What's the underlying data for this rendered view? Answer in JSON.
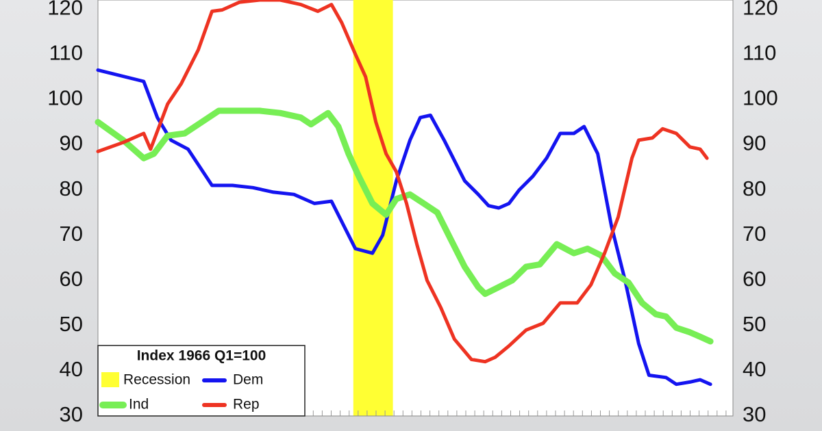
{
  "chart_data": {
    "type": "line",
    "legend_title": "Index 1966 Q1=100",
    "recession": {
      "name": "Recession",
      "color": "#ffff33",
      "xrange": [
        37.4,
        43.2
      ]
    },
    "xlim": [
      0,
      93
    ],
    "ylim": [
      30,
      122
    ],
    "yticks": [
      30,
      40,
      50,
      60,
      70,
      80,
      90,
      100,
      110,
      120
    ],
    "y2lim": [
      30,
      122
    ],
    "y2ticks": [
      30,
      40,
      50,
      60,
      70,
      80,
      90,
      100,
      110,
      120
    ],
    "legend": "bottom-left",
    "series": [
      {
        "name": "Dem",
        "color": "#1414f0",
        "width": 5,
        "x": [
          0,
          6.7,
          8.7,
          10.7,
          13.2,
          16.7,
          19.7,
          22.7,
          25.7,
          28.7,
          31.7,
          34.2,
          35.7,
          37.7,
          40.2,
          41.7,
          43.7,
          45.7,
          47.2,
          48.7,
          50.7,
          53.7,
          55.7,
          57.2,
          58.7,
          60.2,
          61.7,
          63.7,
          65.7,
          67.7,
          69.7,
          71.2,
          73.2,
          75.2,
          77.2,
          79.2,
          80.7,
          83.2,
          84.7,
          86.7,
          88.2,
          89.7
        ],
        "values": [
          106.5,
          104,
          96,
          91,
          89,
          81,
          81,
          80.5,
          79.5,
          79,
          77,
          77.5,
          73,
          67,
          66,
          70,
          82,
          91,
          96,
          96.5,
          91,
          82,
          79,
          76.5,
          76,
          77,
          80,
          83,
          87,
          92.5,
          92.5,
          94,
          88,
          72,
          60,
          46,
          39,
          38.5,
          37,
          37.5,
          38,
          37
        ]
      },
      {
        "name": "Ind",
        "color": "#77ee55",
        "width": 9,
        "x": [
          0,
          3.7,
          6.7,
          8.2,
          10.2,
          12.7,
          15.7,
          17.7,
          20.7,
          23.7,
          26.7,
          29.7,
          31.2,
          33.7,
          35.2,
          36.7,
          38.2,
          40.2,
          42.2,
          43.7,
          45.7,
          47.7,
          49.7,
          51.7,
          53.7,
          55.7,
          56.7,
          58.7,
          60.7,
          62.7,
          64.7,
          67.2,
          69.7,
          71.7,
          73.7,
          75.7,
          77.7,
          79.7,
          81.7,
          83.2,
          84.7,
          86.7,
          88.2,
          89.7
        ],
        "values": [
          95,
          91,
          87,
          88,
          92,
          92.5,
          95.5,
          97.5,
          97.5,
          97.5,
          97,
          96,
          94.5,
          97,
          94,
          88,
          83,
          77,
          74.5,
          78,
          79,
          77,
          75,
          69,
          63,
          58.5,
          57,
          58.5,
          60,
          63,
          63.5,
          68,
          66,
          67,
          65.5,
          61.5,
          59.5,
          55,
          52.5,
          52,
          49.5,
          48.5,
          47.5,
          46.5
        ]
      },
      {
        "name": "Rep",
        "color": "#ee3322",
        "width": 5,
        "x": [
          0,
          3.7,
          6.7,
          7.7,
          10.2,
          12.2,
          14.7,
          16.7,
          18.2,
          20.7,
          23.7,
          26.7,
          29.7,
          32.2,
          34.2,
          35.7,
          37.7,
          39.2,
          40.7,
          42.2,
          43.7,
          45.2,
          46.7,
          48.2,
          50.2,
          52.2,
          54.7,
          56.7,
          58.2,
          60.2,
          62.7,
          65.2,
          67.7,
          70.2,
          72.2,
          74.2,
          76.2,
          78.2,
          79.2,
          81.2,
          82.7,
          84.7,
          86.7,
          88.2,
          89.2
        ],
        "values": [
          88.5,
          90.5,
          92.5,
          89,
          99,
          103.5,
          111,
          119.5,
          119.8,
          121.5,
          122,
          122,
          121,
          119.5,
          121,
          117,
          110,
          105,
          95,
          88,
          84,
          77,
          68,
          60,
          54,
          47,
          42.5,
          42,
          43,
          45.5,
          49,
          50.5,
          55,
          55,
          59,
          66,
          74,
          87,
          91,
          91.5,
          93.5,
          92.5,
          89.5,
          89,
          87
        ]
      }
    ]
  }
}
